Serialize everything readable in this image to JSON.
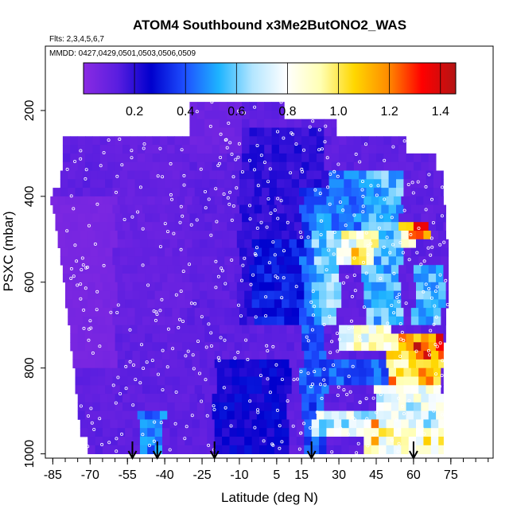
{
  "chart_data": {
    "type": "heatmap",
    "title": "ATOM4 Southbound x3Me2ButONO2_WAS",
    "subtitle_flights": "Flts: 2,3,4,5,6,7",
    "subtitle_dates": "MMDD: 0427,0429,0501,0503,0506,0509",
    "xlabel": "Latitude (deg N)",
    "ylabel": "PSXC (mbar)",
    "xlim": [
      -88,
      92
    ],
    "ylim": [
      1010,
      50
    ],
    "x_ticks": [
      -85,
      -70,
      -55,
      -40,
      -25,
      -10,
      5,
      15,
      30,
      45,
      60,
      75
    ],
    "x_tick_labels": [
      "-85",
      "-70",
      "-55",
      "-40",
      "-25",
      "-10",
      "5",
      "15",
      "30",
      "45",
      "60",
      "75"
    ],
    "x_minor_step": 5,
    "y_ticks": [
      200,
      400,
      600,
      800,
      1000
    ],
    "y_tick_labels": [
      "200",
      "400",
      "600",
      "800",
      "1000"
    ],
    "colorbar": {
      "min": 0,
      "max": 1.46,
      "ticks": [
        0.2,
        0.4,
        0.6,
        0.8,
        1.0,
        1.2,
        1.4
      ],
      "tick_labels": [
        "0.2",
        "0.4",
        "0.6",
        "0.8",
        "1.0",
        "1.2",
        "1.4"
      ],
      "colors": [
        "#8a2be2",
        "#5a1ee0",
        "#0000cd",
        "#1e50ff",
        "#1eb4ff",
        "#b4e6ff",
        "#ffffff",
        "#ffffb4",
        "#ffd700",
        "#ff8c00",
        "#ff0000",
        "#b41414"
      ]
    },
    "profile_arrows_lat": [
      -53,
      -43,
      -20,
      19,
      60
    ],
    "pressure_levels": [
      190,
      210,
      230,
      250,
      270,
      290,
      310,
      330,
      350,
      370,
      390,
      410,
      430,
      450,
      470,
      490,
      510,
      530,
      550,
      570,
      590,
      610,
      630,
      650,
      670,
      690,
      710,
      730,
      750,
      770,
      790,
      810,
      830,
      850,
      870,
      890,
      910,
      930,
      950,
      970,
      990
    ],
    "lat_min_by_level": [
      -30,
      -30,
      -30,
      -30,
      -81,
      -81,
      -81,
      -81,
      -82,
      -82,
      -85,
      -86,
      -85,
      -84,
      -84,
      -83,
      -83,
      -82,
      -82,
      -81,
      -81,
      -80,
      -80,
      -80,
      -79,
      -79,
      -78,
      -78,
      -78,
      -77,
      -77,
      -76,
      -76,
      -76,
      -75,
      -75,
      -75,
      -74,
      -74,
      -71,
      -71
    ],
    "lat_max_by_level": [
      8,
      8,
      29,
      29,
      57,
      57,
      69,
      69,
      72,
      72,
      72,
      72,
      73,
      73,
      73,
      73,
      74,
      74,
      74,
      74,
      74,
      74,
      74,
      74,
      73,
      73,
      73,
      73,
      72,
      72,
      72,
      72,
      72,
      72,
      72,
      72,
      72,
      72,
      72,
      72,
      72
    ],
    "background_level": 0.12,
    "regions": [
      {
        "lat": [
          -85,
          -60
        ],
        "p": [
          400,
          800
        ],
        "value": 0.05
      },
      {
        "lat": [
          -60,
          -30
        ],
        "p": [
          250,
          700
        ],
        "value": 0.1
      },
      {
        "lat": [
          -30,
          -10
        ],
        "p": [
          180,
          300
        ],
        "value": 0.08
      },
      {
        "lat": [
          -10,
          25
        ],
        "p": [
          250,
          700
        ],
        "value": 0.2
      },
      {
        "lat": [
          -5,
          20
        ],
        "p": [
          500,
          700
        ],
        "value": 0.3
      },
      {
        "lat": [
          -20,
          10
        ],
        "p": [
          780,
          1000
        ],
        "value": 0.25
      },
      {
        "lat": [
          -50,
          -40
        ],
        "p": [
          900,
          1000
        ],
        "value": 0.45
      },
      {
        "lat": [
          15,
          25
        ],
        "p": [
          380,
          1000
        ],
        "value": 0.4
      },
      {
        "lat": [
          20,
          30
        ],
        "p": [
          450,
          700
        ],
        "value": 0.6
      },
      {
        "lat": [
          25,
          40
        ],
        "p": [
          350,
          480
        ],
        "value": 0.45
      },
      {
        "lat": [
          40,
          55
        ],
        "p": [
          350,
          700
        ],
        "value": 0.55
      },
      {
        "lat": [
          30,
          45
        ],
        "p": [
          480,
          560
        ],
        "value": 0.85
      },
      {
        "lat": [
          35,
          45
        ],
        "p": [
          520,
          560
        ],
        "value": 1.0
      },
      {
        "lat": [
          55,
          60
        ],
        "p": [
          460,
          510
        ],
        "value": 1.05
      },
      {
        "lat": [
          58,
          66
        ],
        "p": [
          470,
          500
        ],
        "value": 1.15
      },
      {
        "lat": [
          60,
          72
        ],
        "p": [
          560,
          700
        ],
        "value": 0.55
      },
      {
        "lat": [
          30,
          50
        ],
        "p": [
          700,
          760
        ],
        "value": 0.85
      },
      {
        "lat": [
          50,
          60
        ],
        "p": [
          720,
          770
        ],
        "value": 1.05
      },
      {
        "lat": [
          60,
          72
        ],
        "p": [
          720,
          770
        ],
        "value": 1.25
      },
      {
        "lat": [
          25,
          50
        ],
        "p": [
          780,
          840
        ],
        "value": 0.4
      },
      {
        "lat": [
          50,
          72
        ],
        "p": [
          780,
          840
        ],
        "value": 1.05
      },
      {
        "lat": [
          45,
          72
        ],
        "p": [
          840,
          900
        ],
        "value": 0.75
      },
      {
        "lat": [
          20,
          72
        ],
        "p": [
          900,
          950
        ],
        "value": 0.7
      },
      {
        "lat": [
          40,
          72
        ],
        "p": [
          950,
          1000
        ],
        "value": 0.9
      },
      {
        "lat": [
          44,
          46
        ],
        "p": [
          900,
          1000
        ],
        "value": 1.05
      }
    ],
    "grid": true
  }
}
